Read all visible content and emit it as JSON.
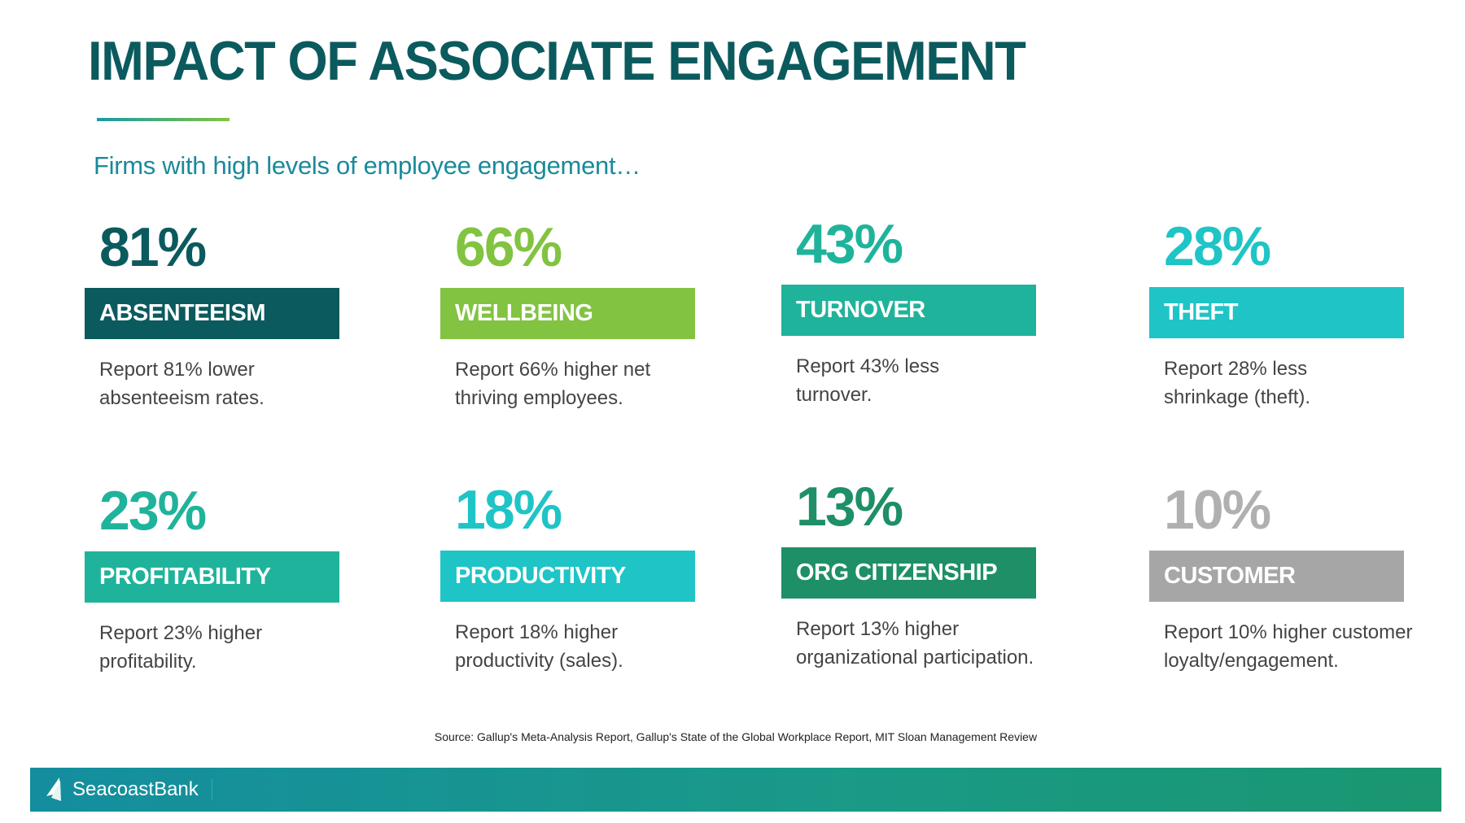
{
  "title": "IMPACT OF ASSOCIATE ENGAGEMENT",
  "subtitle": "Firms with high levels of employee engagement…",
  "cards": [
    {
      "percent": "81%",
      "label": "ABSENTEEISM",
      "description": "Report 81% lower absenteeism rates.",
      "color": "#0b5a5e",
      "text_color": "#0b5a5e"
    },
    {
      "percent": "66%",
      "label": "WELLBEING",
      "description": "Report 66% higher net thriving employees.",
      "color": "#82c341",
      "text_color": "#82c341"
    },
    {
      "percent": "43%",
      "label": "TURNOVER",
      "description": "Report 43% less turnover.",
      "color": "#20b39b",
      "text_color": "#20b39b"
    },
    {
      "percent": "28%",
      "label": "THEFT",
      "description": "Report 28% less shrinkage (theft).",
      "color": "#1fc4c6",
      "text_color": "#1fc4c6"
    },
    {
      "percent": "23%",
      "label": "PROFITABILITY",
      "description": "Report 23% higher profitability.",
      "color": "#20b39b",
      "text_color": "#20b39b"
    },
    {
      "percent": "18%",
      "label": "PRODUCTIVITY",
      "description": "Report 18% higher productivity (sales).",
      "color": "#1fc4c6",
      "text_color": "#1fc4c6"
    },
    {
      "percent": "13%",
      "label": "ORG CITIZENSHIP",
      "description": "Report 13% higher organizational participation.",
      "color": "#1e8f66",
      "text_color": "#1e8f66"
    },
    {
      "percent": "10%",
      "label": "CUSTOMER",
      "description": "Report 10% higher customer loyalty/engagement.",
      "color": "#a6a6a6",
      "text_color": "#b0b0b0"
    }
  ],
  "source": "Source: Gallup's Meta-Analysis Report, Gallup's State of the Global Workplace Report, MIT Sloan Management Review",
  "footer": {
    "logo_text": "SeacoastBank",
    "logo_icon": "sail-icon"
  }
}
